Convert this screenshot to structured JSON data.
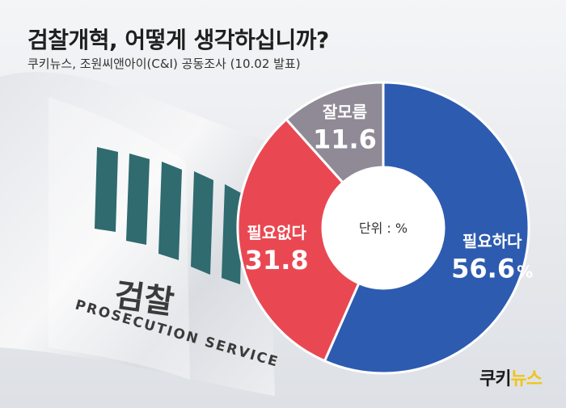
{
  "header": {
    "title": "검찰개혁, 어떻게 생각하십니까?",
    "subtitle": "쿠키뉴스, 조원씨앤아이(C&I) 공동조사 (10.02 발표)"
  },
  "flag": {
    "emblem_text": "검찰",
    "caption_text": "PROSECUTION SERVICE"
  },
  "chart_data": {
    "type": "pie",
    "center_label": "단위 : %",
    "categories": [
      "필요하다",
      "필요없다",
      "잘모름"
    ],
    "values": [
      56.6,
      31.8,
      11.6
    ],
    "value_labels": [
      "56.6",
      "31.8",
      "11.6"
    ],
    "unit_suffix": "%",
    "colors": [
      "#2d5bb0",
      "#e94852",
      "#8f8a96"
    ]
  },
  "logo": {
    "part1": "쿠키",
    "part2": "뉴스",
    "color1": "#1a1a1a",
    "color2": "#f2c417"
  }
}
